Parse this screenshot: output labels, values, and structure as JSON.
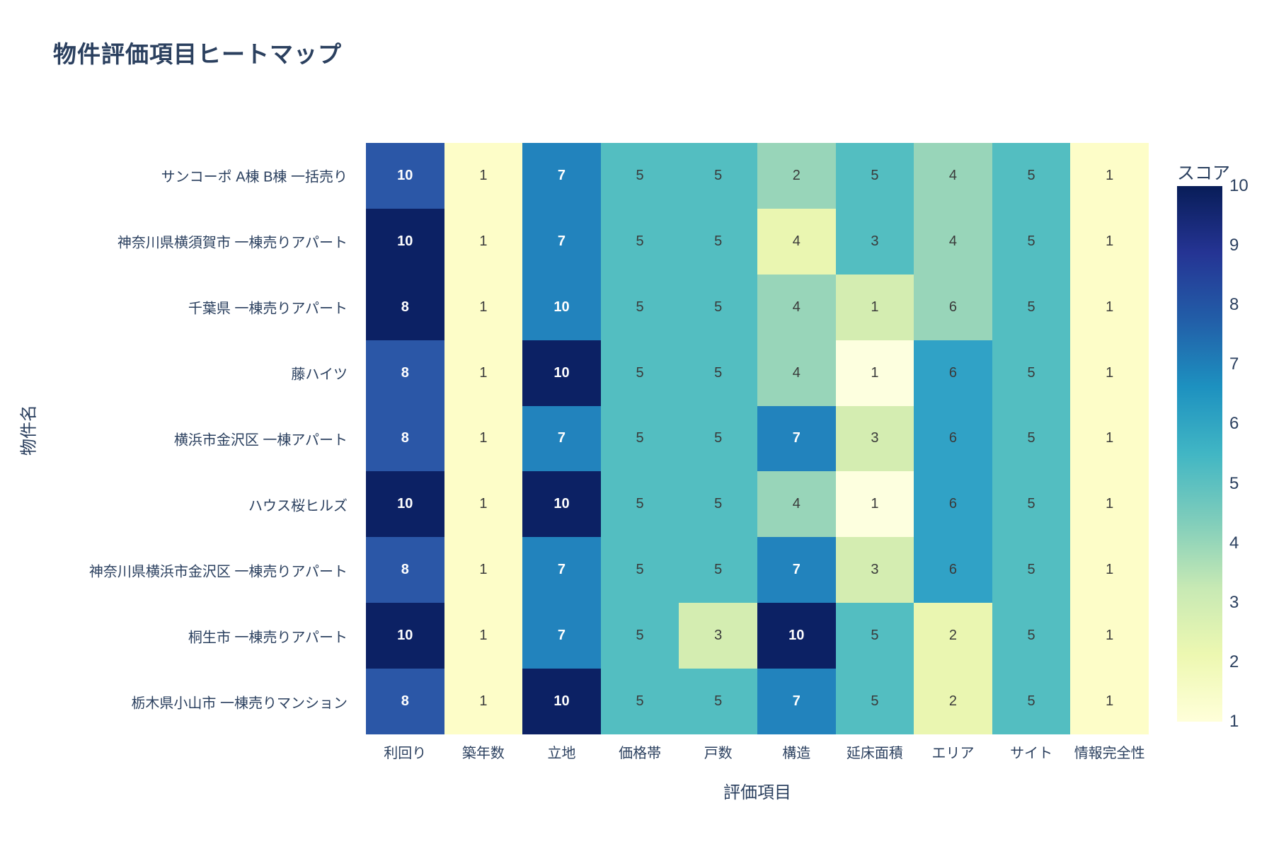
{
  "title": "物件評価項目ヒートマップ",
  "x_axis": {
    "title": "評価項目",
    "labels": [
      "利回り",
      "築年数",
      "立地",
      "価格帯",
      "戸数",
      "構造",
      "延床面積",
      "エリア",
      "サイト",
      "情報完全性"
    ]
  },
  "y_axis": {
    "title": "物件名",
    "labels": [
      "サンコーポ A棟 B棟 一括売り",
      "神奈川県横須賀市 一棟売りアパート",
      "千葉県 一棟売りアパート",
      "藤ハイツ",
      "横浜市金沢区 一棟アパート",
      "ハウス桜ヒルズ",
      "神奈川県横浜市金沢区 一棟売りアパート",
      "桐生市 一棟売りアパート",
      "栃木県小山市 一棟売りマンション"
    ]
  },
  "colorbar": {
    "title": "スコア",
    "ticks": [
      "10",
      "9",
      "8",
      "7",
      "6",
      "5",
      "4",
      "3",
      "2",
      "1"
    ],
    "min": 1,
    "max": 10,
    "gradient_stops": [
      "#ffffd9",
      "#edf8b1",
      "#c7e9b4",
      "#7fcdbb",
      "#41b6c4",
      "#1d91c0",
      "#225ea8",
      "#253494",
      "#081d58"
    ]
  },
  "palette": {
    "n10": {
      "bg": "#0c2164",
      "fg": "#ffffff"
    },
    "b8": {
      "bg": "#2b57a7",
      "fg": "#ffffff"
    },
    "b7": {
      "bg": "#2283bd",
      "fg": "#ffffff"
    },
    "b6": {
      "bg": "#30a2c6",
      "fg": "#3a3a3a"
    },
    "t5": {
      "bg": "#53bec1",
      "fg": "#3a3a3a"
    },
    "g4": {
      "bg": "#98d5b9",
      "fg": "#3a3a3a"
    },
    "g3": {
      "bg": "#d4edb1",
      "fg": "#3a3a3a"
    },
    "y2": {
      "bg": "#eaf6b1",
      "fg": "#3a3a3a"
    },
    "y1": {
      "bg": "#fdfdc8",
      "fg": "#3a3a3a"
    },
    "w0": {
      "bg": "#fdffdf",
      "fg": "#3a3a3a"
    }
  },
  "text_colors": {
    "title_and_ticks": "#2b405f",
    "cell_dark": "#3a3a3a",
    "cell_light": "#ffffff"
  },
  "chart_data": {
    "type": "heatmap",
    "title": "物件評価項目ヒートマップ",
    "xlabel": "評価項目",
    "ylabel": "物件名",
    "columns": [
      "利回り",
      "築年数",
      "立地",
      "価格帯",
      "戸数",
      "構造",
      "延床面積",
      "エリア",
      "サイト",
      "情報完全性"
    ],
    "rows": [
      "サンコーポ A棟 B棟 一括売り",
      "神奈川県横須賀市 一棟売りアパート",
      "千葉県 一棟売りアパート",
      "藤ハイツ",
      "横浜市金沢区 一棟アパート",
      "ハウス桜ヒルズ",
      "神奈川県横浜市金沢区 一棟売りアパート",
      "桐生市 一棟売りアパート",
      "栃木県小山市 一棟売りマンション"
    ],
    "values": [
      [
        10,
        1,
        7,
        5,
        5,
        2,
        5,
        4,
        5,
        1
      ],
      [
        10,
        1,
        7,
        5,
        5,
        4,
        3,
        4,
        5,
        1
      ],
      [
        8,
        1,
        10,
        5,
        5,
        4,
        1,
        6,
        5,
        1
      ],
      [
        8,
        1,
        10,
        5,
        5,
        4,
        1,
        6,
        5,
        1
      ],
      [
        8,
        1,
        7,
        5,
        5,
        7,
        3,
        6,
        5,
        1
      ],
      [
        10,
        1,
        10,
        5,
        5,
        4,
        1,
        6,
        5,
        1
      ],
      [
        8,
        1,
        7,
        5,
        5,
        7,
        3,
        6,
        5,
        1
      ],
      [
        10,
        1,
        7,
        5,
        3,
        10,
        5,
        2,
        5,
        1
      ],
      [
        8,
        1,
        10,
        5,
        5,
        7,
        5,
        2,
        5,
        1
      ]
    ],
    "cell_colors": [
      [
        "b8",
        "y1",
        "b7",
        "t5",
        "t5",
        "g4",
        "t5",
        "g4",
        "t5",
        "y1"
      ],
      [
        "n10",
        "y1",
        "b7",
        "t5",
        "t5",
        "y2",
        "t5",
        "g4",
        "t5",
        "y1"
      ],
      [
        "n10",
        "y1",
        "b7",
        "t5",
        "t5",
        "g4",
        "g3",
        "g4",
        "t5",
        "y1"
      ],
      [
        "b8",
        "y1",
        "n10",
        "t5",
        "t5",
        "g4",
        "w0",
        "b6",
        "t5",
        "y1"
      ],
      [
        "b8",
        "y1",
        "b7",
        "t5",
        "t5",
        "b7",
        "g3",
        "b6",
        "t5",
        "y1"
      ],
      [
        "n10",
        "y1",
        "n10",
        "t5",
        "t5",
        "g4",
        "w0",
        "b6",
        "t5",
        "y1"
      ],
      [
        "b8",
        "y1",
        "b7",
        "t5",
        "t5",
        "b7",
        "g3",
        "b6",
        "t5",
        "y1"
      ],
      [
        "n10",
        "y1",
        "b7",
        "t5",
        "g3",
        "n10",
        "t5",
        "y2",
        "t5",
        "y1"
      ],
      [
        "b8",
        "y1",
        "n10",
        "t5",
        "t5",
        "b7",
        "t5",
        "y2",
        "t5",
        "y1"
      ]
    ],
    "zlim": [
      1,
      10
    ],
    "legend": {
      "title": "スコア",
      "position": "right"
    },
    "grid": false,
    "colorscale": "YlGnBu reversed (light yellow = low, navy = high)"
  }
}
